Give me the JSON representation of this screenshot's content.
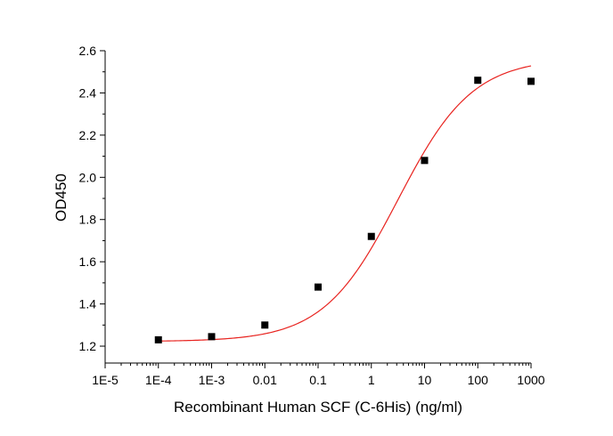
{
  "chart_data": {
    "type": "scatter",
    "title": "",
    "xlabel": "Recombinant Human SCF (C-6His) (ng/ml)",
    "ylabel": "OD450",
    "x_scale": "log",
    "xlim": [
      1e-05,
      1000
    ],
    "ylim": [
      1.12,
      2.6
    ],
    "x_ticks": [
      "1E-5",
      "1E-4",
      "1E-3",
      "0.01",
      "0.1",
      "1",
      "10",
      "100",
      "1000"
    ],
    "y_ticks": [
      "1.2",
      "1.4",
      "1.6",
      "1.8",
      "2.0",
      "2.2",
      "2.4",
      "2.6"
    ],
    "grid": false,
    "legend": "none",
    "series": [
      {
        "values": [
          {
            "x": 0.0001,
            "y": 1.23
          },
          {
            "x": 0.001,
            "y": 1.245
          },
          {
            "x": 0.01,
            "y": 1.3
          },
          {
            "x": 0.1,
            "y": 1.48
          },
          {
            "x": 1,
            "y": 1.72
          },
          {
            "x": 10,
            "y": 2.08
          },
          {
            "x": 100,
            "y": 2.46
          },
          {
            "x": 1000,
            "y": 2.455
          }
        ],
        "color": "#000000",
        "marker": "square"
      }
    ],
    "fit": {
      "type": "4PL sigmoid",
      "color": "#e8231f",
      "x_range": [
        0.0001,
        1000
      ],
      "bottom": 1.222,
      "top": 2.565,
      "ec50": 3.16,
      "hill": 0.62
    }
  }
}
